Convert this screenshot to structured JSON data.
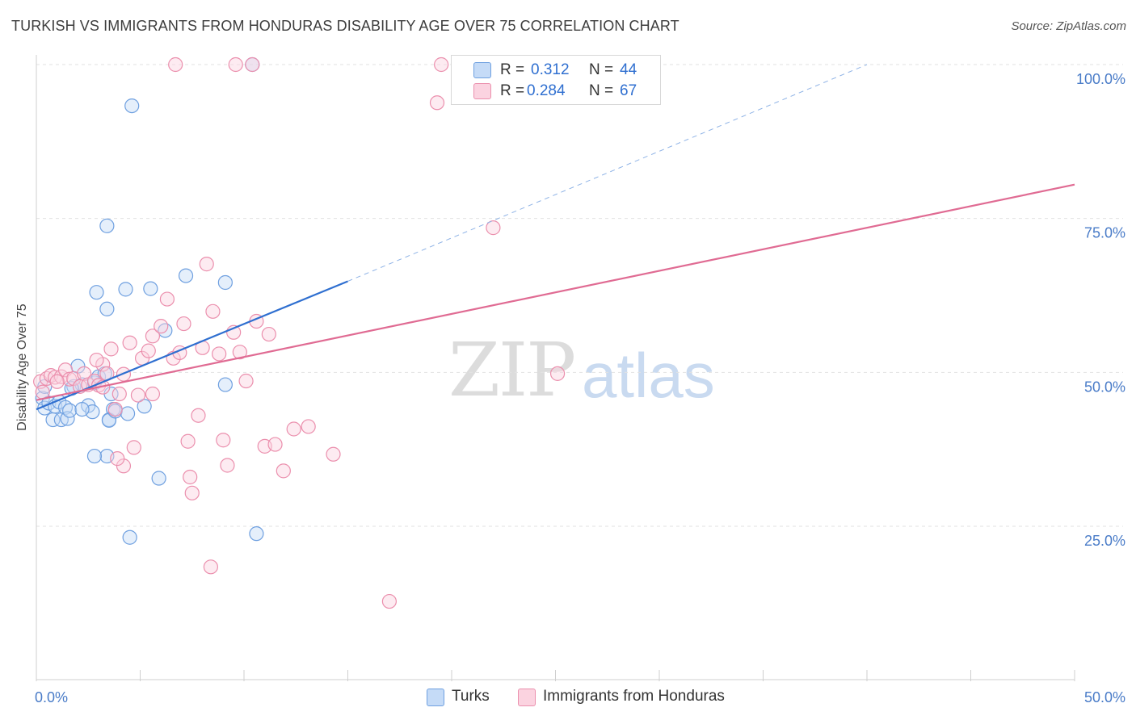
{
  "title": "TURKISH VS IMMIGRANTS FROM HONDURAS DISABILITY AGE OVER 75 CORRELATION CHART",
  "source": "Source: ZipAtlas.com",
  "watermark": {
    "zip": "ZIP",
    "atlas": "atlas"
  },
  "colors": {
    "turks": "#6fa0e0",
    "honduras": "#eb8fad",
    "turks_line": "#2f6fd0",
    "honduras_line": "#e06b93",
    "axis_text": "#4a7cc8"
  },
  "legend": {
    "rows": [
      {
        "r_label": "R =",
        "r_value": "0.312",
        "n_label": "N =",
        "n_value": "44"
      },
      {
        "r_label": "R =",
        "r_value": "0.284",
        "n_label": "N =",
        "n_value": "67"
      }
    ]
  },
  "chart_data": {
    "type": "scatter",
    "title": "TURKISH VS IMMIGRANTS FROM HONDURAS DISABILITY AGE OVER 75 CORRELATION CHART",
    "xlabel": "",
    "ylabel": "Disability Age Over 75",
    "xlim": [
      0,
      50
    ],
    "ylim": [
      0,
      102
    ],
    "x_ticks": [
      "0.0%",
      "50.0%"
    ],
    "y_ticks": [
      {
        "value": 100,
        "label": "100.0%"
      },
      {
        "value": 75,
        "label": "75.0%"
      },
      {
        "value": 50,
        "label": "50.0%"
      },
      {
        "value": 25,
        "label": "25.0%"
      }
    ],
    "grid": true,
    "legend_position": "top-center",
    "series": [
      {
        "name": "Turks",
        "color": "#6fa0e0",
        "points": [
          [
            0.3,
            45.8
          ],
          [
            0.4,
            44.2
          ],
          [
            0.6,
            45.0
          ],
          [
            0.8,
            42.3
          ],
          [
            0.9,
            44.5
          ],
          [
            1.1,
            45.2
          ],
          [
            1.2,
            42.3
          ],
          [
            1.4,
            44.3
          ],
          [
            1.5,
            42.5
          ],
          [
            1.6,
            43.8
          ],
          [
            1.8,
            47.7
          ],
          [
            2.0,
            51.0
          ],
          [
            2.2,
            48.0
          ],
          [
            2.5,
            44.6
          ],
          [
            2.7,
            43.6
          ],
          [
            2.8,
            48.3
          ],
          [
            3.0,
            49.3
          ],
          [
            3.3,
            49.8
          ],
          [
            3.5,
            42.3
          ],
          [
            3.6,
            46.5
          ],
          [
            3.7,
            44.0
          ],
          [
            3.4,
            36.4
          ],
          [
            2.8,
            36.4
          ],
          [
            2.9,
            63.0
          ],
          [
            3.4,
            60.3
          ],
          [
            3.5,
            42.2
          ],
          [
            3.8,
            43.7
          ],
          [
            4.3,
            63.5
          ],
          [
            4.4,
            43.3
          ],
          [
            4.5,
            23.2
          ],
          [
            4.6,
            93.3
          ],
          [
            5.2,
            44.5
          ],
          [
            5.5,
            63.6
          ],
          [
            5.9,
            32.8
          ],
          [
            6.2,
            56.8
          ],
          [
            7.2,
            65.7
          ],
          [
            9.1,
            48.0
          ],
          [
            9.1,
            64.6
          ],
          [
            10.4,
            100.0
          ],
          [
            10.6,
            23.8
          ],
          [
            3.4,
            73.8
          ],
          [
            1.7,
            47.4
          ],
          [
            2.2,
            44.0
          ],
          [
            0.4,
            47.7
          ]
        ],
        "trend": {
          "x": [
            0,
            15
          ],
          "y": [
            44.0,
            64.8
          ]
        },
        "trend_extension": {
          "x": [
            15,
            40
          ],
          "y": [
            64.8,
            100.0
          ]
        }
      },
      {
        "name": "Immigrants from Honduras",
        "color": "#eb8fad",
        "points": [
          [
            0.2,
            48.5
          ],
          [
            0.5,
            49.0
          ],
          [
            0.7,
            49.5
          ],
          [
            0.9,
            49.2
          ],
          [
            1.2,
            49.3
          ],
          [
            1.4,
            50.4
          ],
          [
            1.6,
            48.9
          ],
          [
            1.8,
            49.0
          ],
          [
            2.1,
            47.7
          ],
          [
            2.3,
            49.8
          ],
          [
            2.5,
            48.0
          ],
          [
            2.8,
            48.6
          ],
          [
            3.0,
            47.9
          ],
          [
            3.2,
            51.3
          ],
          [
            3.4,
            49.8
          ],
          [
            3.6,
            53.8
          ],
          [
            3.8,
            44.0
          ],
          [
            4.0,
            46.5
          ],
          [
            4.2,
            49.7
          ],
          [
            4.5,
            54.8
          ],
          [
            4.7,
            37.8
          ],
          [
            4.9,
            46.3
          ],
          [
            5.1,
            52.3
          ],
          [
            5.4,
            53.5
          ],
          [
            5.6,
            55.9
          ],
          [
            6.0,
            57.5
          ],
          [
            6.3,
            61.9
          ],
          [
            6.6,
            52.3
          ],
          [
            6.9,
            53.2
          ],
          [
            7.1,
            57.9
          ],
          [
            7.4,
            33.0
          ],
          [
            7.5,
            30.4
          ],
          [
            7.8,
            43.0
          ],
          [
            8.0,
            54.0
          ],
          [
            8.2,
            67.6
          ],
          [
            8.5,
            59.9
          ],
          [
            8.8,
            53.0
          ],
          [
            9.0,
            39.0
          ],
          [
            9.2,
            34.9
          ],
          [
            9.5,
            56.5
          ],
          [
            9.8,
            53.3
          ],
          [
            10.1,
            48.6
          ],
          [
            10.4,
            100.0
          ],
          [
            10.6,
            58.3
          ],
          [
            11.0,
            38.0
          ],
          [
            11.2,
            56.2
          ],
          [
            11.5,
            38.3
          ],
          [
            11.9,
            34.0
          ],
          [
            12.4,
            40.8
          ],
          [
            13.1,
            41.2
          ],
          [
            14.3,
            36.7
          ],
          [
            17.0,
            12.8
          ],
          [
            19.3,
            93.8
          ],
          [
            19.5,
            100.0
          ],
          [
            22.0,
            73.5
          ],
          [
            25.1,
            49.8
          ],
          [
            4.2,
            34.8
          ],
          [
            3.9,
            36.0
          ],
          [
            6.7,
            100.0
          ],
          [
            9.6,
            100.0
          ],
          [
            7.3,
            38.8
          ],
          [
            5.6,
            46.5
          ],
          [
            2.9,
            52.0
          ],
          [
            8.4,
            18.4
          ],
          [
            0.3,
            46.8
          ],
          [
            1.0,
            48.5
          ],
          [
            3.2,
            47.6
          ]
        ],
        "trend": {
          "x": [
            0,
            50
          ],
          "y": [
            45.5,
            80.5
          ]
        }
      }
    ]
  },
  "bottom_legend": [
    {
      "label": "Turks"
    },
    {
      "label": "Immigrants from Honduras"
    }
  ]
}
